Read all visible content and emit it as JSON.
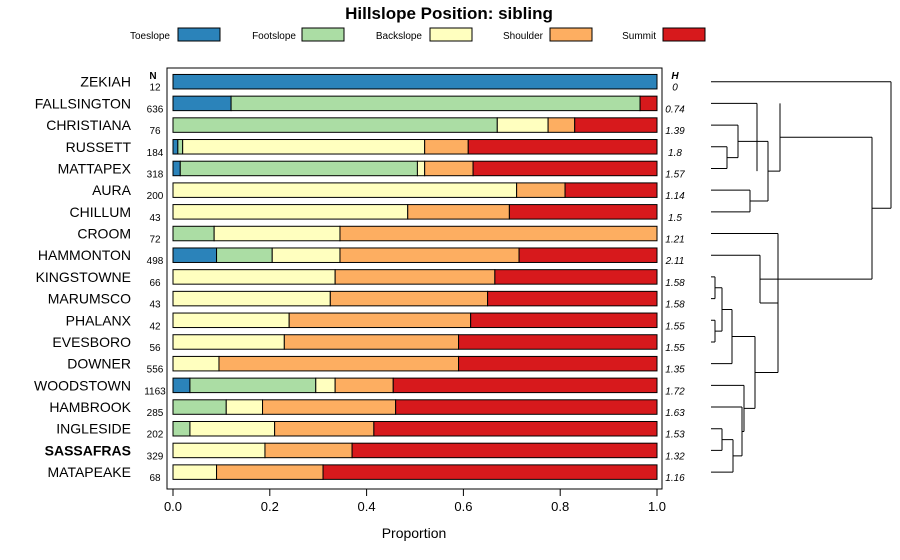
{
  "chart_data": {
    "type": "bar",
    "orientation": "horizontal",
    "stacked": true,
    "title": "Hillslope Position: sibling",
    "xlabel": "Proportion",
    "ylabel": "",
    "xlim": [
      0,
      1
    ],
    "xticks": [
      "0.0",
      "0.2",
      "0.4",
      "0.6",
      "0.8",
      "1.0"
    ],
    "legend": {
      "placement": "top",
      "entries": [
        {
          "name": "Toeslope",
          "color": "#2b83ba"
        },
        {
          "name": "Footslope",
          "color": "#abdda4"
        },
        {
          "name": "Backslope",
          "color": "#ffffbf"
        },
        {
          "name": "Shoulder",
          "color": "#fdae61"
        },
        {
          "name": "Summit",
          "color": "#d7191c"
        }
      ]
    },
    "n_header": "N",
    "h_header": "H",
    "categories": [
      "ZEKIAH",
      "FALLSINGTON",
      "CHRISTIANA",
      "RUSSETT",
      "MATTAPEX",
      "AURA",
      "CHILLUM",
      "CROOM",
      "HAMMONTON",
      "KINGSTOWNE",
      "MARUMSCO",
      "PHALANX",
      "EVESBORO",
      "DOWNER",
      "WOODSTOWN",
      "HAMBROOK",
      "INGLESIDE",
      "SASSAFRAS",
      "MATAPEAKE"
    ],
    "highlight": "SASSAFRAS",
    "n": [
      "12",
      "636",
      "76",
      "184",
      "318",
      "200",
      "43",
      "72",
      "498",
      "66",
      "43",
      "42",
      "56",
      "556",
      "1163",
      "285",
      "202",
      "329",
      "68"
    ],
    "h": [
      "0",
      "0.74",
      "1.39",
      "1.8",
      "1.57",
      "1.14",
      "1.5",
      "1.21",
      "2.11",
      "1.58",
      "1.58",
      "1.55",
      "1.55",
      "1.35",
      "1.72",
      "1.63",
      "1.53",
      "1.32",
      "1.16"
    ],
    "series": [
      {
        "name": "Toeslope",
        "values": [
          1.0,
          0.12,
          0.0,
          0.01,
          0.015,
          0.0,
          0.0,
          0.0,
          0.09,
          0.0,
          0.0,
          0.0,
          0.0,
          0.0,
          0.035,
          0.0,
          0.0,
          0.0,
          0.0
        ]
      },
      {
        "name": "Footslope",
        "values": [
          0.0,
          0.845,
          0.67,
          0.01,
          0.49,
          0.0,
          0.0,
          0.085,
          0.115,
          0.0,
          0.0,
          0.0,
          0.0,
          0.0,
          0.26,
          0.11,
          0.035,
          0.0,
          0.0
        ]
      },
      {
        "name": "Backslope",
        "values": [
          0.0,
          0.0,
          0.105,
          0.5,
          0.015,
          0.71,
          0.485,
          0.26,
          0.14,
          0.335,
          0.325,
          0.24,
          0.23,
          0.095,
          0.04,
          0.075,
          0.175,
          0.19,
          0.09
        ]
      },
      {
        "name": "Shoulder",
        "values": [
          0.0,
          0.0,
          0.055,
          0.09,
          0.1,
          0.1,
          0.21,
          0.655,
          0.37,
          0.33,
          0.325,
          0.375,
          0.36,
          0.495,
          0.12,
          0.275,
          0.205,
          0.18,
          0.22
        ]
      },
      {
        "name": "Summit",
        "values": [
          0.0,
          0.035,
          0.17,
          0.39,
          0.38,
          0.19,
          0.305,
          0.0,
          0.285,
          0.335,
          0.35,
          0.385,
          0.41,
          0.41,
          0.545,
          0.54,
          0.585,
          0.63,
          0.69
        ]
      }
    ],
    "dendrogram": {
      "structure": "hierarchical clustering of soil series by hillslope position proportions",
      "leaf_order": [
        "ZEKIAH",
        "FALLSINGTON",
        "CHRISTIANA",
        "RUSSETT",
        "MATTAPEX",
        "AURA",
        "CHILLUM",
        "CROOM",
        "HAMMONTON",
        "KINGSTOWNE",
        "MARUMSCO",
        "PHALANX",
        "EVESBORO",
        "DOWNER",
        "WOODSTOWN",
        "HAMBROOK",
        "INGLESIDE",
        "SASSAFRAS",
        "MATAPEAKE"
      ]
    }
  }
}
